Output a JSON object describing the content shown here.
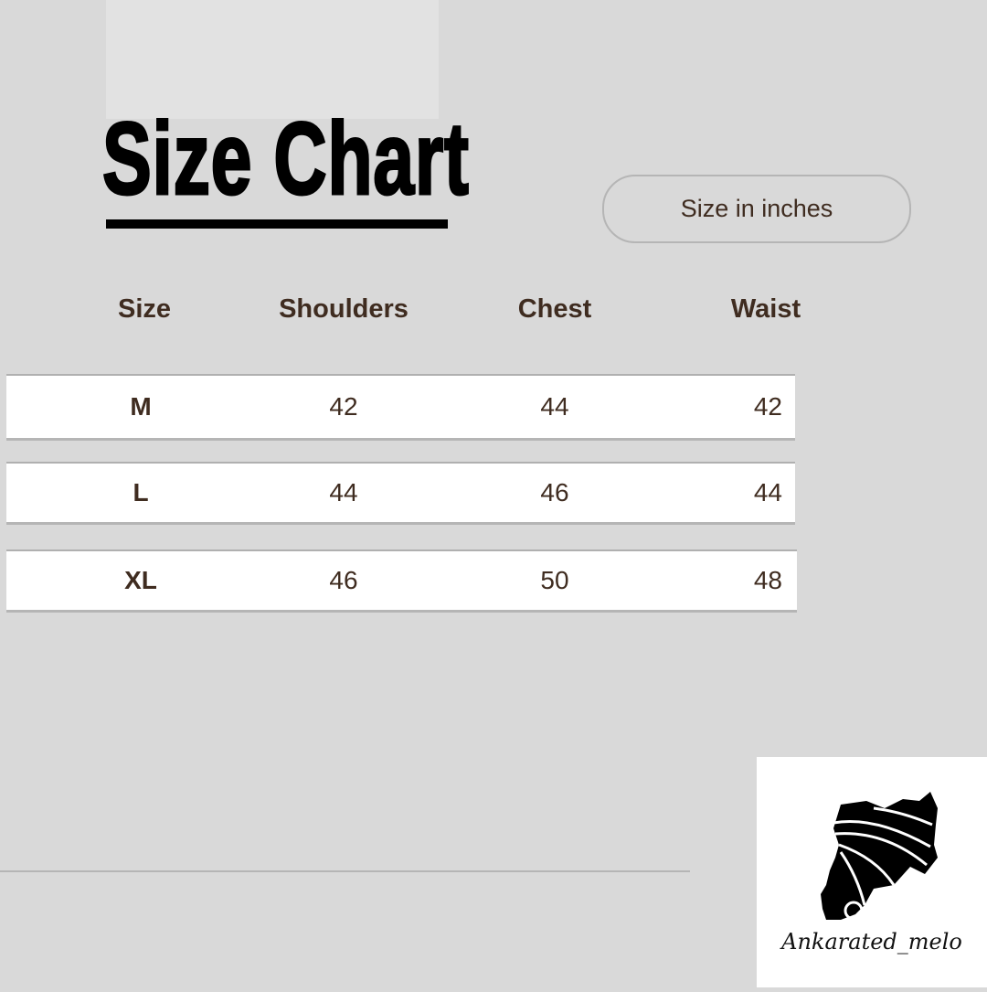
{
  "title": "Size Chart",
  "unit_badge": "Size in inches",
  "columns": [
    "Size",
    "Shoulders",
    "Chest",
    "Waist"
  ],
  "rows": [
    {
      "size": "M",
      "shoulders": "42",
      "chest": "44",
      "waist": "42"
    },
    {
      "size": "L",
      "shoulders": "44",
      "chest": "46",
      "waist": "44"
    },
    {
      "size": "XL",
      "shoulders": "46",
      "chest": "50",
      "waist": "48"
    }
  ],
  "logo": {
    "brand": "Ankarated_melo",
    "icon": "woman-head-wrap-silhouette-icon"
  },
  "colors": {
    "background": "#d9d9d9",
    "text": "#3f2c20",
    "title": "#000000"
  }
}
